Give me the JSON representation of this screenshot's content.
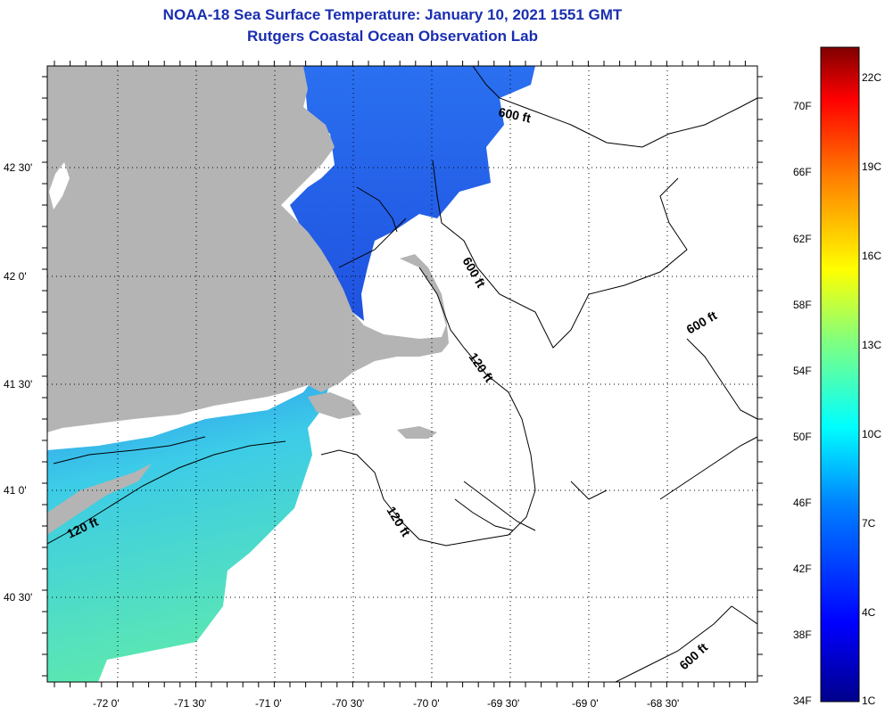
{
  "header": {
    "title": "NOAA-18 Sea Surface Temperature:  January 10, 2021 1551 GMT",
    "subtitle": "Rutgers Coastal Ocean Observation Lab"
  },
  "map": {
    "lon_labels": [
      "-72 0'",
      "-71 30'",
      "-71 0'",
      "-70 30'",
      "-70 0'",
      "-69 30'",
      "-69 0'",
      "-68 30'"
    ],
    "lat_labels": [
      "42 30'",
      "42 0'",
      "41 30'",
      "41 0'",
      "40 30'"
    ],
    "contour_labels": [
      "600 ft",
      "600 ft",
      "600 ft",
      "600 ft",
      "120 ft",
      "120 ft",
      "120 ft"
    ],
    "colors": {
      "land": "#b4b4b4",
      "no_data": "#ffffff",
      "contour": "#000000"
    }
  },
  "colorbar": {
    "fahrenheit_labels": [
      "70F",
      "66F",
      "62F",
      "58F",
      "54F",
      "50F",
      "46F",
      "42F",
      "38F",
      "34F"
    ],
    "celsius_labels": [
      "22C",
      "19C",
      "16C",
      "13C",
      "10C",
      "7C",
      "4C",
      "1C"
    ],
    "colormap": "jet"
  }
}
